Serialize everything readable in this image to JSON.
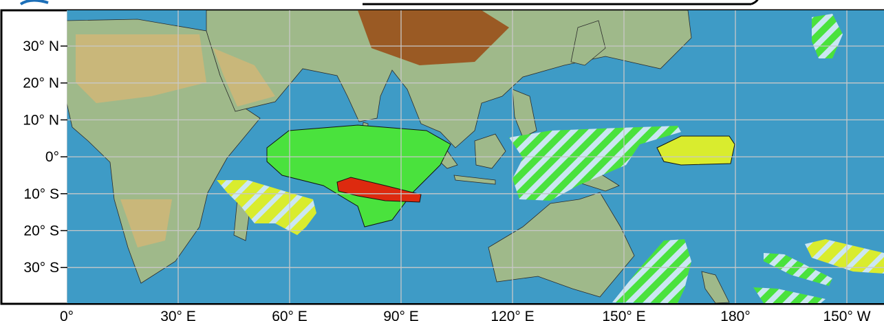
{
  "map": {
    "lat_labels": [
      "30° N",
      "20° N",
      "10° N",
      "0°",
      "10° S",
      "20° S",
      "30° S"
    ],
    "lon_labels": [
      "0°",
      "30° E",
      "60° E",
      "90° E",
      "120° E",
      "150° E",
      "180°",
      "150° W"
    ]
  }
}
